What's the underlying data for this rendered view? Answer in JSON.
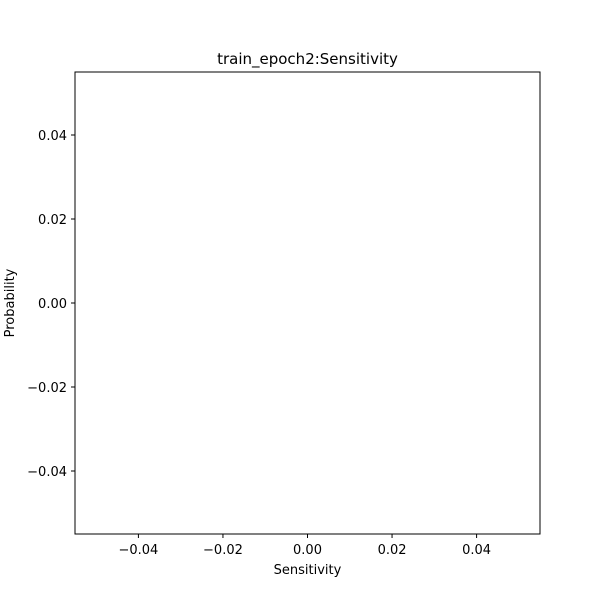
{
  "chart_data": {
    "type": "line",
    "title": "train_epoch2:Sensitivity",
    "xlabel": "Sensitivity",
    "ylabel": "Probability",
    "xlim": [
      -0.055,
      0.055
    ],
    "ylim": [
      -0.055,
      0.055
    ],
    "xticks": [
      -0.04,
      -0.02,
      0.0,
      0.02,
      0.04
    ],
    "yticks": [
      -0.04,
      -0.02,
      0.0,
      0.02,
      0.04
    ],
    "xtick_labels": [
      "−0.04",
      "−0.02",
      "0.00",
      "0.02",
      "0.04"
    ],
    "ytick_labels": [
      "−0.04",
      "−0.02",
      "0.00",
      "0.02",
      "0.04"
    ],
    "series": [],
    "grid": false,
    "legend": "none"
  },
  "colors": {
    "axes": "#000000",
    "background": "#ffffff"
  }
}
